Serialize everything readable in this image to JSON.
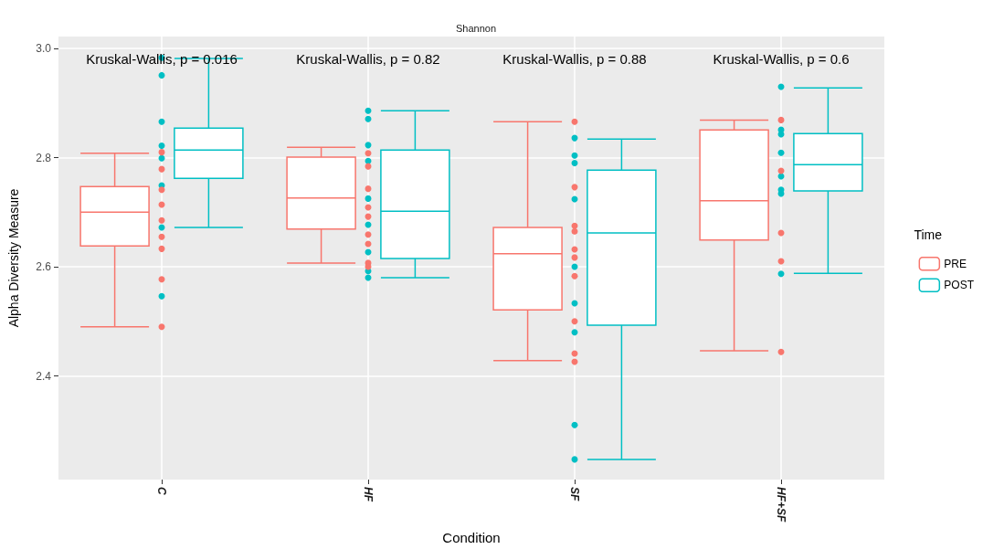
{
  "chart_data": {
    "type": "box",
    "title": "Shannon",
    "xlabel": "Condition",
    "ylabel": "Alpha Diversity Measure",
    "legend_title": "Time",
    "legend": "right",
    "grid": true,
    "categories": [
      "C",
      "HF",
      "SF",
      "HF+SF"
    ],
    "ylim": [
      2.21,
      3.022
    ],
    "yticks": [
      2.4,
      2.6,
      2.8,
      {
        "value": 3,
        "label": "3.0"
      }
    ],
    "annotations": [
      "Kruskal-Wallis, p = 0.016",
      "Kruskal-Wallis, p = 0.82",
      "Kruskal-Wallis, p = 0.88",
      "Kruskal-Wallis, p = 0.6"
    ],
    "series": [
      {
        "name": "PRE",
        "color": "#f8766d",
        "boxes": [
          {
            "low": 2.49,
            "q1": 2.638,
            "median": 2.7,
            "q3": 2.747,
            "high": 2.808
          },
          {
            "low": 2.607,
            "q1": 2.669,
            "median": 2.726,
            "q3": 2.801,
            "high": 2.819
          },
          {
            "low": 2.428,
            "q1": 2.521,
            "median": 2.624,
            "q3": 2.672,
            "high": 2.866
          },
          {
            "low": 2.446,
            "q1": 2.649,
            "median": 2.721,
            "q3": 2.851,
            "high": 2.869
          }
        ]
      },
      {
        "name": "POST",
        "color": "#00bfc4",
        "boxes": [
          {
            "low": 2.672,
            "q1": 2.762,
            "median": 2.814,
            "q3": 2.854,
            "high": 2.982
          },
          {
            "low": 2.58,
            "q1": 2.615,
            "median": 2.702,
            "q3": 2.814,
            "high": 2.886
          },
          {
            "low": 2.247,
            "q1": 2.493,
            "median": 2.662,
            "q3": 2.777,
            "high": 2.834
          },
          {
            "low": 2.588,
            "q1": 2.739,
            "median": 2.787,
            "q3": 2.844,
            "high": 2.928
          }
        ]
      },
      {
        "type": "scatter",
        "color": "#00bfc4",
        "x": [
          "C",
          "C",
          "C",
          "C",
          "C",
          "C",
          "C",
          "C",
          "C",
          "C",
          "HF",
          "HF",
          "HF",
          "HF",
          "HF",
          "HF",
          "HF",
          "HF",
          "HF",
          "HF",
          "SF",
          "SF",
          "SF",
          "SF",
          "SF",
          "SF",
          "SF",
          "SF",
          "SF",
          "HF+SF",
          "HF+SF",
          "HF+SF",
          "HF+SF",
          "HF+SF",
          "HF+SF",
          "HF+SF",
          "HF+SF"
        ],
        "values": [
          2.983,
          2.951,
          2.866,
          2.822,
          null,
          null,
          2.799,
          2.749,
          2.672,
          2.546,
          2.886,
          2.871,
          2.823,
          2.794,
          2.725,
          2.677,
          2.627,
          null,
          2.592,
          2.58,
          2.836,
          2.804,
          2.79,
          2.724,
          2.6,
          2.533,
          2.48,
          2.31,
          2.247,
          2.93,
          2.851,
          2.843,
          2.809,
          2.766,
          2.741,
          2.734,
          2.587
        ]
      },
      {
        "type": "scatter",
        "color": "#f8766d",
        "x": [
          "C",
          "C",
          "C",
          "C",
          "C",
          "C",
          "C",
          "C",
          "C",
          "HF",
          "HF",
          "HF",
          "HF",
          "HF",
          "HF",
          "HF",
          "HF",
          "HF",
          "SF",
          "SF",
          "SF",
          "SF",
          "SF",
          "SF",
          "SF",
          "SF",
          "SF",
          "SF",
          "HF+SF",
          "HF+SF",
          "HF+SF",
          "HF+SF",
          "HF+SF"
        ],
        "values": [
          2.81,
          2.779,
          2.741,
          2.714,
          2.685,
          2.655,
          2.633,
          2.577,
          2.49,
          2.808,
          2.784,
          2.743,
          2.709,
          2.692,
          2.659,
          2.642,
          2.607,
          2.6,
          2.866,
          2.746,
          2.675,
          2.665,
          2.632,
          2.617,
          2.583,
          2.5,
          2.441,
          2.426,
          2.869,
          2.776,
          2.662,
          2.61,
          2.444
        ]
      }
    ]
  }
}
